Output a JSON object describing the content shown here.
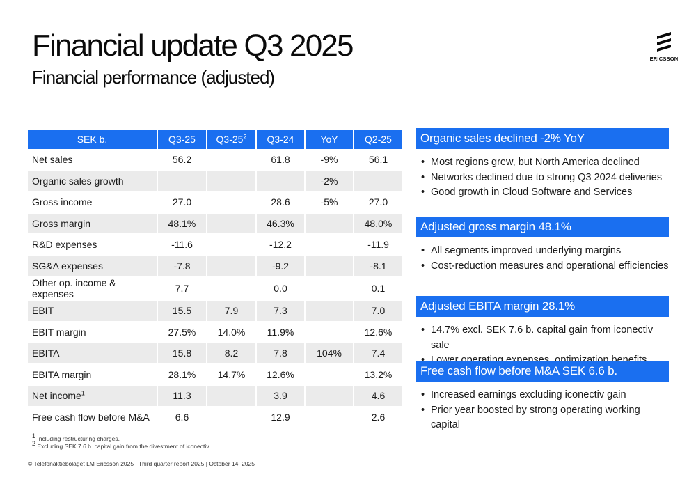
{
  "title": "Financial update Q3 2025",
  "subtitle": "Financial performance (adjusted)",
  "logo": {
    "text": "ERICSSON",
    "icon": "ericsson-logo-icon"
  },
  "table": {
    "headers": [
      "SEK b.",
      "Q3-25",
      "Q3-25",
      "Q3-24",
      "YoY",
      "Q2-25"
    ],
    "header_sup": "2",
    "rows": [
      {
        "label": "Net sales",
        "sup": "",
        "values": [
          "56.2",
          "",
          "61.8",
          "-9%",
          "56.1"
        ]
      },
      {
        "label": "Organic sales growth",
        "sup": "",
        "values": [
          "",
          "",
          "",
          "-2%",
          ""
        ]
      },
      {
        "label": "Gross income",
        "sup": "",
        "values": [
          "27.0",
          "",
          "28.6",
          "-5%",
          "27.0"
        ]
      },
      {
        "label": "Gross margin",
        "sup": "",
        "values": [
          "48.1%",
          "",
          "46.3%",
          "",
          "48.0%"
        ]
      },
      {
        "label": "R&D expenses",
        "sup": "",
        "values": [
          "-11.6",
          "",
          "-12.2",
          "",
          "-11.9"
        ]
      },
      {
        "label": "SG&A expenses",
        "sup": "",
        "values": [
          "-7.8",
          "",
          "-9.2",
          "",
          "-8.1"
        ]
      },
      {
        "label": "Other op. income & expenses",
        "sup": "",
        "values": [
          "7.7",
          "",
          "0.0",
          "",
          "0.1"
        ]
      },
      {
        "label": "EBIT",
        "sup": "",
        "values": [
          "15.5",
          "7.9",
          "7.3",
          "",
          "7.0"
        ]
      },
      {
        "label": "EBIT margin",
        "sup": "",
        "values": [
          "27.5%",
          "14.0%",
          "11.9%",
          "",
          "12.6%"
        ]
      },
      {
        "label": "EBITA",
        "sup": "",
        "values": [
          "15.8",
          "8.2",
          "7.8",
          "104%",
          "7.4"
        ]
      },
      {
        "label": "EBITA margin",
        "sup": "",
        "values": [
          "28.1%",
          "14.7%",
          "12.6%",
          "",
          "13.2%"
        ]
      },
      {
        "label": "Net income",
        "sup": "1",
        "values": [
          "11.3",
          "",
          "3.9",
          "",
          "4.6"
        ]
      },
      {
        "label": "Free cash flow before M&A",
        "sup": "",
        "values": [
          "6.6",
          "",
          "12.9",
          "",
          "2.6"
        ]
      }
    ]
  },
  "panels": [
    {
      "header": "Organic sales declined -2% YoY",
      "bullets": [
        "Most regions grew, but North America declined",
        "Networks declined due to strong Q3 2024 deliveries",
        "Good growth in Cloud Software and Services"
      ]
    },
    {
      "header": "Adjusted gross margin 48.1%",
      "bullets": [
        "All segments improved underlying margins",
        "Cost-reduction measures and operational efficiencies"
      ]
    },
    {
      "header": "Adjusted EBITA margin 28.1%",
      "bullets": [
        "14.7% excl. SEK 7.6 b. capital gain from iconectiv sale",
        "Lower operating expenses, optimization benefits"
      ]
    },
    {
      "header": "Free cash flow before M&A SEK 6.6 b.",
      "bullets": [
        "Increased earnings excluding iconectiv gain",
        "Prior year boosted by strong operating working capital"
      ]
    }
  ],
  "footnotes": [
    "Including restructuring charges.",
    "Excluding SEK 7.6 b. capital gain from the divestment of iconectiv"
  ],
  "footnote_marks": [
    "1",
    "2"
  ],
  "footer": "© Telefonaktiebolaget LM Ericsson 2025 | Third quarter report 2025 | October 14, 2025",
  "colors": {
    "accent": "#1a6ff0",
    "row_alt": "#ebebeb"
  }
}
